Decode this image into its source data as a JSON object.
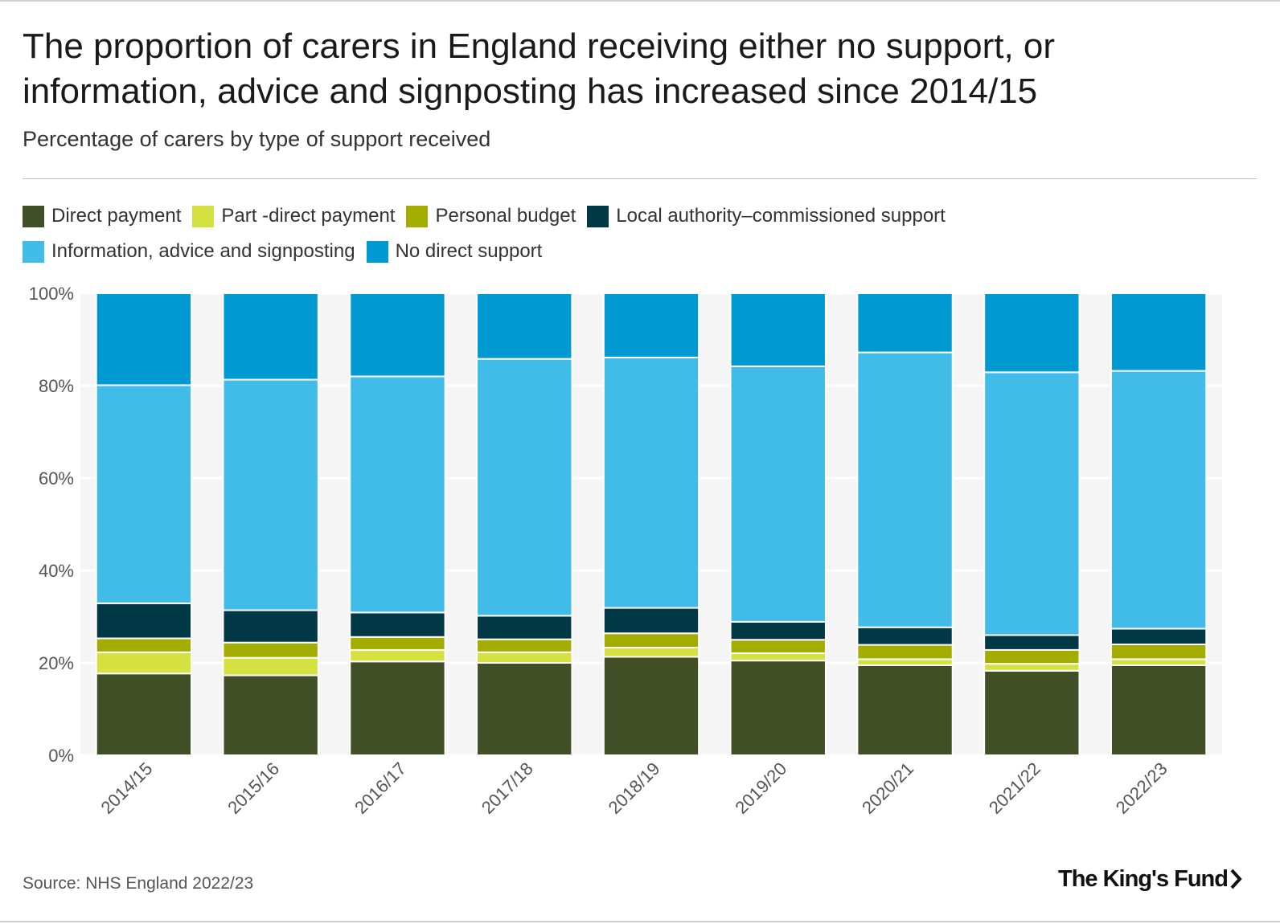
{
  "header": {
    "title": "The proportion of carers in England receiving either no support, or information, advice and signposting has increased since 2014/15",
    "subtitle": "Percentage of carers by type of support received"
  },
  "footer": {
    "source": "Source: NHS England 2022/23",
    "logo_text": "The King's Fund"
  },
  "chart_data": {
    "type": "bar",
    "stacked": true,
    "title": "The proportion of carers in England receiving either no support, or information, advice and signposting has increased since 2014/15",
    "subtitle": "Percentage of carers by type of support received",
    "xlabel": "",
    "ylabel": "",
    "ylim": [
      0,
      100
    ],
    "yticks": [
      0,
      20,
      40,
      60,
      80,
      100
    ],
    "ytick_labels": [
      "0%",
      "20%",
      "40%",
      "60%",
      "80%",
      "100%"
    ],
    "grid": true,
    "legend_position": "top-left",
    "categories": [
      "2014/15",
      "2015/16",
      "2016/17",
      "2017/18",
      "2018/19",
      "2019/20",
      "2020/21",
      "2021/22",
      "2022/23"
    ],
    "series": [
      {
        "name": "Direct payment",
        "color": "#404f25",
        "values": [
          17.7,
          17.3,
          20.3,
          20.0,
          21.3,
          20.5,
          19.5,
          18.3,
          19.5
        ]
      },
      {
        "name": "Part -direct payment",
        "color": "#d4e141",
        "values": [
          4.6,
          3.8,
          2.5,
          2.3,
          2.0,
          1.6,
          1.3,
          1.5,
          1.3
        ]
      },
      {
        "name": "Personal budget",
        "color": "#a2ad00",
        "values": [
          3.0,
          3.3,
          2.8,
          2.8,
          3.1,
          2.9,
          3.1,
          3.0,
          3.2
        ]
      },
      {
        "name": "Local authority–commissioned support",
        "color": "#003845",
        "values": [
          7.6,
          7.0,
          5.3,
          5.1,
          5.5,
          3.9,
          3.8,
          3.2,
          3.4
        ]
      },
      {
        "name": "Information, advice and signposting",
        "color": "#41bbe8",
        "values": [
          47.2,
          49.9,
          51.1,
          55.6,
          54.2,
          55.3,
          59.5,
          56.9,
          55.8
        ]
      },
      {
        "name": "No direct support",
        "color": "#0099d1",
        "values": [
          19.9,
          18.7,
          18.0,
          14.2,
          13.9,
          15.8,
          12.8,
          17.1,
          16.8
        ]
      }
    ]
  }
}
